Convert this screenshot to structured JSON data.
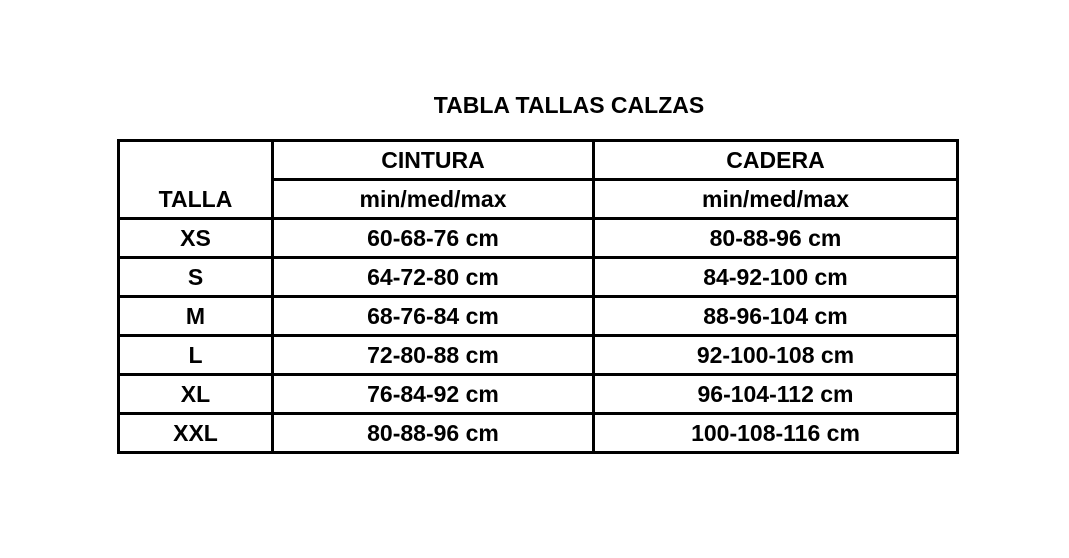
{
  "title": "TABLA TALLAS CALZAS",
  "headers": {
    "talla": "TALLA",
    "cintura": "CINTURA",
    "cadera": "CADERA",
    "cintura_sub": "min/med/max",
    "cadera_sub": "min/med/max"
  },
  "rows": [
    {
      "talla": "XS",
      "cintura": "60-68-76 cm",
      "cadera": "80-88-96 cm"
    },
    {
      "talla": "S",
      "cintura": "64-72-80 cm",
      "cadera": "84-92-100 cm"
    },
    {
      "talla": "M",
      "cintura": "68-76-84 cm",
      "cadera": "88-96-104 cm"
    },
    {
      "talla": "L",
      "cintura": "72-80-88 cm",
      "cadera": "92-100-108 cm"
    },
    {
      "talla": "XL",
      "cintura": "76-84-92 cm",
      "cadera": "96-104-112 cm"
    },
    {
      "talla": "XXL",
      "cintura": "80-88-96 cm",
      "cadera": "100-108-116 cm"
    }
  ]
}
